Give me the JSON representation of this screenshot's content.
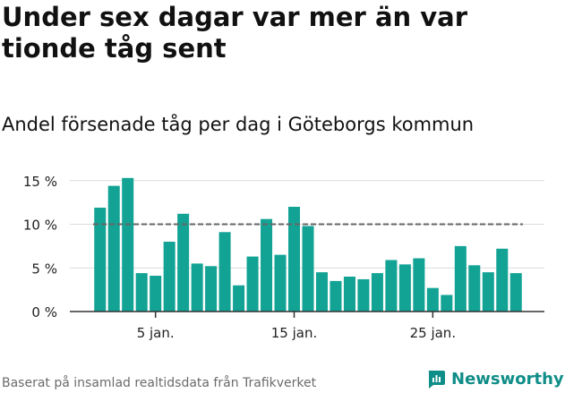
{
  "header": {
    "title": "Under sex dagar var mer än var tionde tåg sent",
    "subtitle": "Andel försenade tåg per dag i Göteborgs kommun"
  },
  "footer": {
    "source": "Baserat på insamlad realtidsdata från Trafikverket",
    "brand": "Newsworthy",
    "brand_color": "#0f8d88"
  },
  "chart_data": {
    "type": "bar",
    "x": [
      1,
      2,
      3,
      4,
      5,
      6,
      7,
      8,
      9,
      10,
      11,
      12,
      13,
      14,
      15,
      16,
      17,
      18,
      19,
      20,
      21,
      22,
      23,
      24,
      25,
      26,
      27,
      28,
      29,
      30,
      31
    ],
    "values": [
      11.9,
      14.4,
      15.3,
      4.4,
      4.1,
      8.0,
      11.2,
      5.5,
      5.2,
      9.1,
      3.0,
      6.3,
      10.6,
      6.5,
      12.0,
      9.8,
      4.5,
      3.5,
      4.0,
      3.7,
      4.4,
      5.9,
      5.4,
      6.1,
      2.7,
      1.9,
      7.5,
      5.3,
      4.5,
      7.2,
      4.4
    ],
    "x_ticks": [
      {
        "x": 5,
        "label": "5 jan."
      },
      {
        "x": 15,
        "label": "15 jan."
      },
      {
        "x": 25,
        "label": "25 jan."
      }
    ],
    "y_ticks": [
      {
        "y": 0,
        "label": "0 %"
      },
      {
        "y": 5,
        "label": "5 %"
      },
      {
        "y": 10,
        "label": "10 %"
      },
      {
        "y": 15,
        "label": "15 %"
      }
    ],
    "ylim": [
      0,
      16
    ],
    "reference_line": 10,
    "bar_color": "#12a394",
    "reference_color": "#666666",
    "grid": true
  }
}
